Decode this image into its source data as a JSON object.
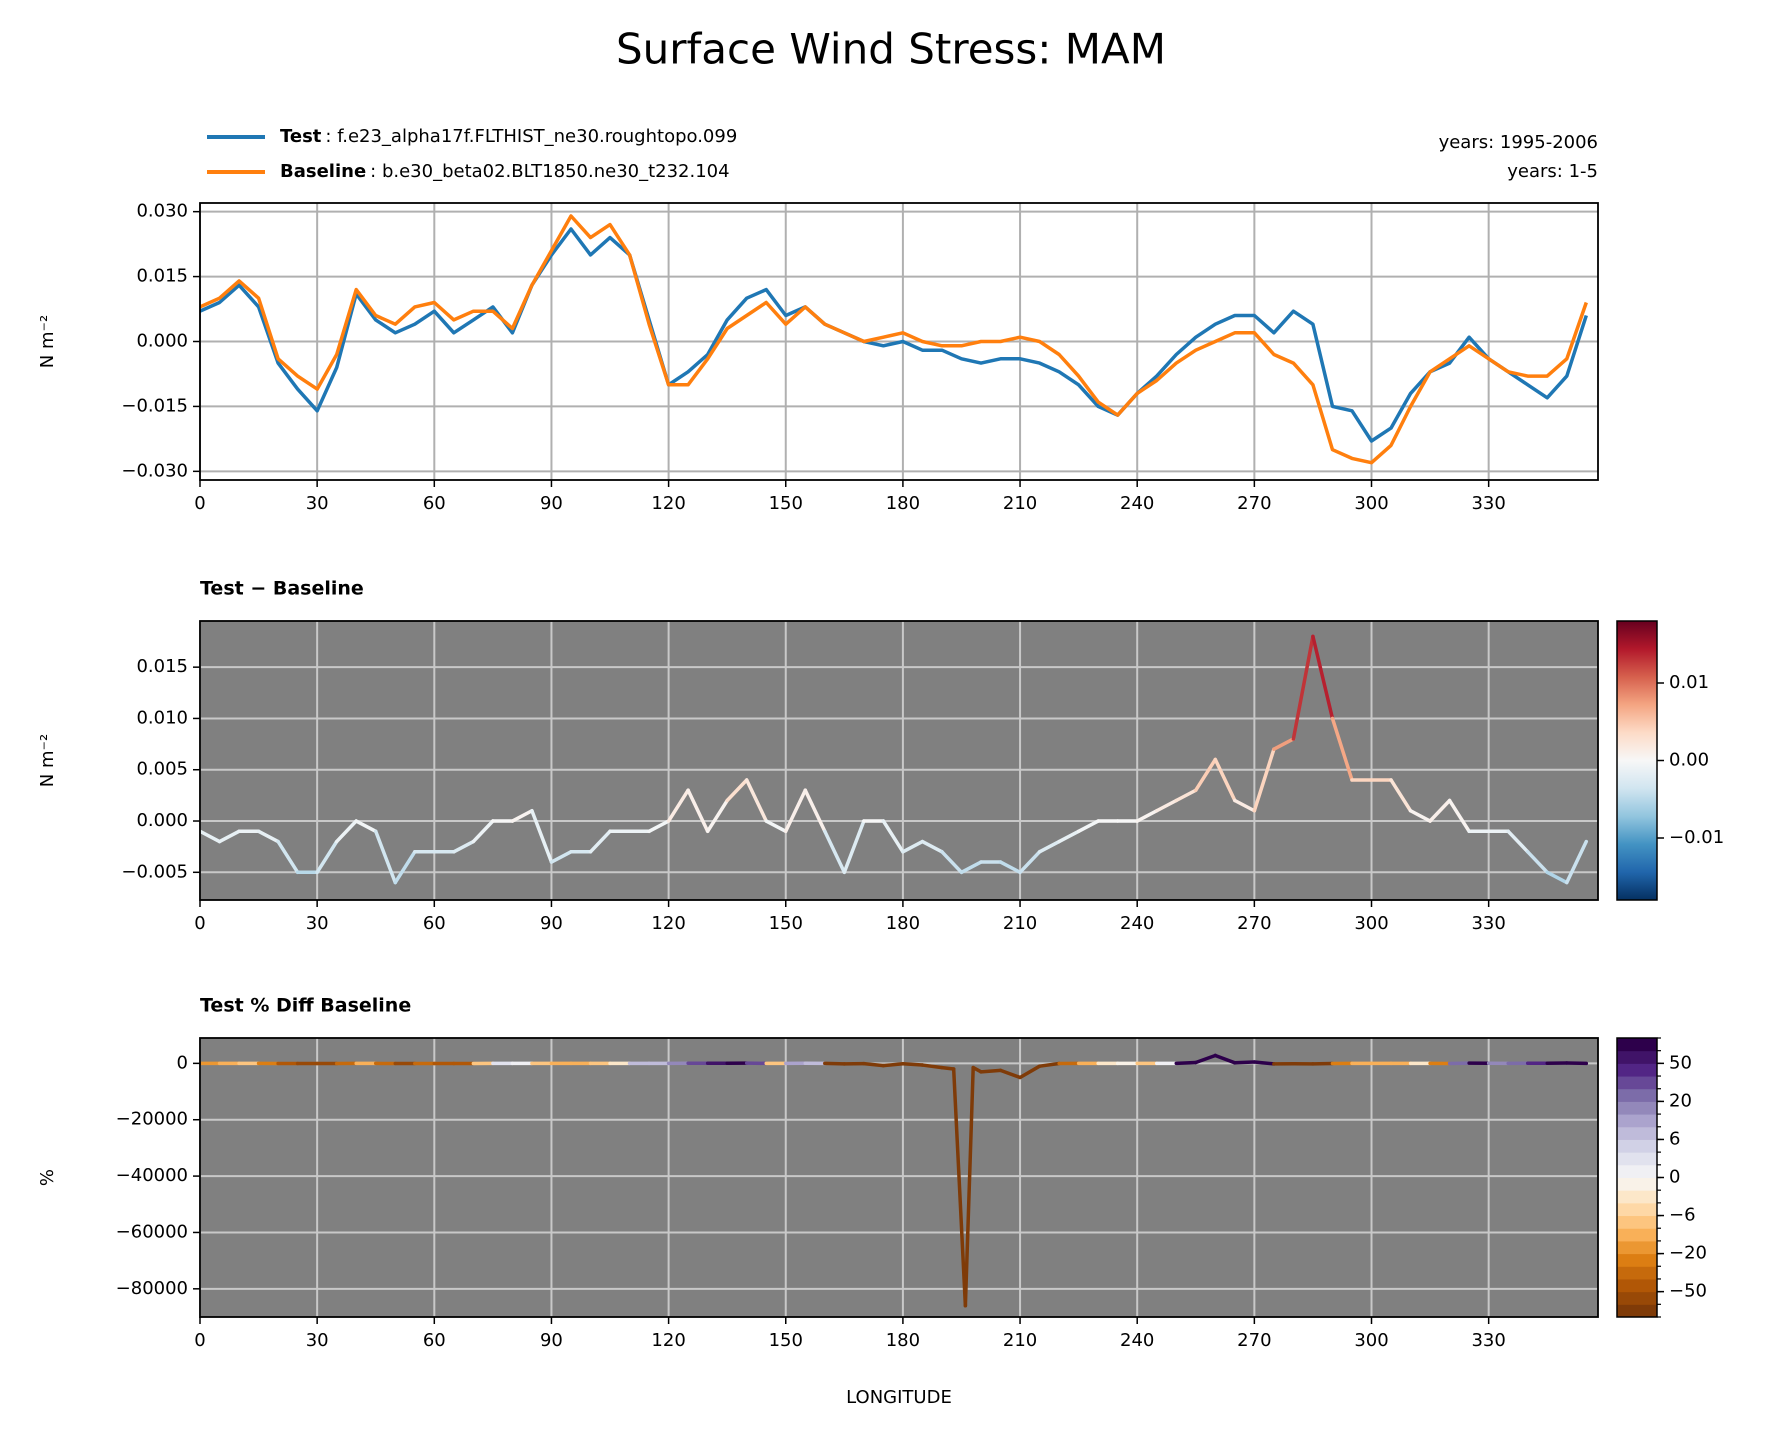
{
  "suptitle": "Surface Wind Stress: MAM",
  "xlabel": "LONGITUDE",
  "legend": {
    "notes": [
      "years: 1995-2006",
      "years: 1-5"
    ]
  },
  "chart_data": [
    {
      "type": "line",
      "ylabel": "N m⁻²",
      "facecolor": "#ffffff",
      "grid": true,
      "grid_color": "#b0b0b0",
      "x": [
        0,
        5,
        10,
        15,
        20,
        25,
        30,
        35,
        40,
        45,
        50,
        55,
        60,
        65,
        70,
        75,
        80,
        85,
        90,
        95,
        100,
        105,
        110,
        115,
        120,
        125,
        130,
        135,
        140,
        145,
        150,
        155,
        160,
        165,
        170,
        175,
        180,
        185,
        190,
        195,
        200,
        205,
        210,
        215,
        220,
        225,
        230,
        235,
        240,
        245,
        250,
        255,
        260,
        265,
        270,
        275,
        280,
        285,
        290,
        295,
        300,
        305,
        310,
        315,
        320,
        325,
        330,
        335,
        340,
        345,
        350,
        355
      ],
      "xlim": [
        0,
        358
      ],
      "xticks": [
        0,
        30,
        60,
        90,
        120,
        150,
        180,
        210,
        240,
        270,
        300,
        330
      ],
      "ylim": [
        -0.032,
        0.032
      ],
      "yticks": [
        {
          "value": -0.03,
          "label": "−0.030"
        },
        {
          "value": -0.015,
          "label": "−0.015"
        },
        {
          "value": 0,
          "label": "0.000"
        },
        {
          "value": 0.015,
          "label": "0.015"
        },
        {
          "value": 0.03,
          "label": "0.030"
        }
      ],
      "series": [
        {
          "name": "Test",
          "case": ": f.e23_alpha17f.FLTHIST_ne30.roughtopo.099",
          "color": "#1f77b4",
          "values": [
            0.007,
            0.009,
            0.013,
            0.008,
            -0.005,
            -0.011,
            -0.016,
            -0.006,
            0.011,
            0.005,
            0.002,
            0.004,
            0.007,
            0.002,
            0.005,
            0.008,
            0.002,
            0.013,
            0.02,
            0.026,
            0.02,
            0.024,
            0.02,
            0.005,
            -0.01,
            -0.007,
            -0.003,
            0.005,
            0.01,
            0.012,
            0.006,
            0.008,
            0.004,
            0.002,
            0,
            -0.001,
            0,
            -0.002,
            -0.002,
            -0.004,
            -0.005,
            -0.004,
            -0.004,
            -0.005,
            -0.007,
            -0.01,
            -0.015,
            -0.017,
            -0.012,
            -0.008,
            -0.003,
            0.001,
            0.004,
            0.006,
            0.006,
            0.002,
            0.007,
            0.004,
            -0.015,
            -0.016,
            -0.023,
            -0.02,
            -0.012,
            -0.007,
            -0.005,
            0.001,
            -0.004,
            -0.007,
            -0.01,
            -0.013,
            -0.008,
            0.006
          ]
        },
        {
          "name": "Baseline",
          "case": ": b.e30_beta02.BLT1850.ne30_t232.104",
          "color": "#ff7f0e",
          "values": [
            0.008,
            0.01,
            0.014,
            0.01,
            -0.004,
            -0.008,
            -0.011,
            -0.003,
            0.012,
            0.006,
            0.004,
            0.008,
            0.009,
            0.005,
            0.007,
            0.007,
            0.003,
            0.013,
            0.021,
            0.029,
            0.024,
            0.027,
            0.02,
            0.004,
            -0.01,
            -0.01,
            -0.004,
            0.003,
            0.006,
            0.009,
            0.004,
            0.008,
            0.004,
            0.002,
            0,
            0.001,
            0.002,
            0,
            -0.001,
            -0.001,
            0,
            0,
            0.001,
            0,
            -0.003,
            -0.008,
            -0.014,
            -0.017,
            -0.012,
            -0.009,
            -0.005,
            -0.002,
            0,
            0.002,
            0.002,
            -0.003,
            -0.005,
            -0.01,
            -0.025,
            -0.027,
            -0.028,
            -0.024,
            -0.015,
            -0.007,
            -0.004,
            -0.001,
            -0.004,
            -0.007,
            -0.008,
            -0.008,
            -0.004,
            0.009
          ]
        }
      ]
    },
    {
      "type": "colored_line",
      "title": "Test − Baseline",
      "ylabel": "N m⁻²",
      "facecolor": "#808080",
      "grid": true,
      "grid_color": "#c8c8c8",
      "x": [
        0,
        5,
        10,
        15,
        20,
        25,
        30,
        35,
        40,
        45,
        50,
        55,
        60,
        65,
        70,
        75,
        80,
        85,
        90,
        95,
        100,
        105,
        110,
        115,
        120,
        125,
        130,
        135,
        140,
        145,
        150,
        155,
        160,
        165,
        170,
        175,
        180,
        185,
        190,
        195,
        200,
        205,
        210,
        215,
        220,
        225,
        230,
        235,
        240,
        245,
        250,
        255,
        260,
        265,
        270,
        275,
        280,
        285,
        290,
        295,
        300,
        305,
        310,
        315,
        320,
        325,
        330,
        335,
        340,
        345,
        350,
        355
      ],
      "values": [
        -0.001,
        -0.002,
        -0.001,
        -0.001,
        -0.002,
        -0.005,
        -0.005,
        -0.002,
        0,
        -0.001,
        -0.006,
        -0.003,
        -0.003,
        -0.003,
        -0.002,
        0,
        0,
        0.001,
        -0.004,
        -0.003,
        -0.003,
        -0.001,
        -0.001,
        -0.001,
        0,
        0.003,
        -0.001,
        0.002,
        0.004,
        0,
        -0.001,
        0.003,
        -0.001,
        -0.005,
        0,
        0,
        -0.003,
        -0.002,
        -0.003,
        -0.005,
        -0.004,
        -0.004,
        -0.005,
        -0.003,
        -0.002,
        -0.001,
        0,
        0,
        0,
        0.001,
        0.002,
        0.003,
        0.006,
        0.002,
        0.001,
        0.007,
        0.008,
        0.018,
        0.01,
        0.004,
        0.004,
        0.004,
        0.001,
        0,
        0.002,
        -0.001,
        -0.001,
        -0.001,
        -0.003,
        -0.005,
        -0.006,
        -0.002
      ],
      "xlim": [
        0,
        358
      ],
      "xticks": [
        0,
        30,
        60,
        90,
        120,
        150,
        180,
        210,
        240,
        270,
        300,
        330
      ],
      "ylim": [
        -0.0077,
        0.0195
      ],
      "yticks": [
        {
          "value": -0.005,
          "label": "−0.005"
        },
        {
          "value": 0,
          "label": "0.000"
        },
        {
          "value": 0.005,
          "label": "0.005"
        },
        {
          "value": 0.01,
          "label": "0.010"
        },
        {
          "value": 0.015,
          "label": "0.015"
        }
      ],
      "colormap": [
        "#053061",
        "#2166ac",
        "#4393c3",
        "#92c5de",
        "#d1e5f0",
        "#f7f7f7",
        "#fddbc7",
        "#f4a582",
        "#d6604d",
        "#b2182b",
        "#67001f"
      ],
      "clim": [
        -0.018,
        0.018
      ],
      "cticks": [
        {
          "value": -0.01,
          "label": "−0.01"
        },
        {
          "value": 0,
          "label": "0.00"
        },
        {
          "value": 0.01,
          "label": "0.01"
        }
      ]
    },
    {
      "type": "colored_line",
      "title": "Test % Diff Baseline",
      "ylabel": "%",
      "facecolor": "#808080",
      "grid": true,
      "grid_color": "#c8c8c8",
      "x": [
        0,
        5,
        10,
        15,
        20,
        25,
        30,
        35,
        40,
        45,
        50,
        55,
        60,
        65,
        70,
        75,
        80,
        85,
        90,
        95,
        100,
        105,
        110,
        115,
        120,
        125,
        130,
        135,
        140,
        145,
        150,
        155,
        160,
        165,
        170,
        175,
        180,
        185,
        190,
        193,
        196,
        198,
        200,
        205,
        210,
        215,
        220,
        225,
        230,
        235,
        240,
        245,
        250,
        255,
        260,
        265,
        270,
        275,
        280,
        285,
        290,
        295,
        300,
        305,
        310,
        315,
        320,
        325,
        330,
        335,
        340,
        345,
        350,
        355
      ],
      "values": [
        -15,
        -20,
        -8,
        -10,
        -40,
        -60,
        -45,
        -70,
        -8,
        -15,
        -60,
        -45,
        -30,
        -55,
        -30,
        12,
        -5,
        5,
        -20,
        -10,
        -15,
        -5,
        -3,
        15,
        2,
        30,
        40,
        60,
        70,
        5,
        -20,
        40,
        -25,
        -200,
        -100,
        -800,
        -150,
        -600,
        -1500,
        -2000,
        -86000,
        -1500,
        -3000,
        -2500,
        -5000,
        -1000,
        -60,
        -20,
        -5,
        0,
        -3,
        -10,
        10,
        300,
        2800,
        200,
        500,
        -200,
        -150,
        -180,
        -40,
        -15,
        -14,
        -16,
        -8,
        0,
        -50,
        100,
        25,
        14,
        37,
        62,
        150,
        -20
      ],
      "xlim": [
        0,
        358
      ],
      "xticks": [
        0,
        30,
        60,
        90,
        120,
        150,
        180,
        210,
        240,
        270,
        300,
        330
      ],
      "ylim": [
        -90000,
        9000
      ],
      "yticks": [
        {
          "value": -80000,
          "label": "−80000"
        },
        {
          "value": -60000,
          "label": "−60000"
        },
        {
          "value": -40000,
          "label": "−40000"
        },
        {
          "value": -20000,
          "label": "−20000"
        },
        0
      ],
      "colormap": [
        "#7f3b08",
        "#b35806",
        "#e08214",
        "#fdb863",
        "#fee0b6",
        "#f7f7f7",
        "#d8daeb",
        "#b2abd2",
        "#8073ac",
        "#542788",
        "#2d004b"
      ],
      "levels": [
        -80,
        -60,
        -50,
        -40,
        -30,
        -20,
        -15,
        -10,
        -6,
        -4,
        -2,
        0,
        2,
        4,
        6,
        10,
        15,
        20,
        30,
        40,
        50,
        60,
        80
      ],
      "cticks": [
        {
          "value": -50,
          "label": "−50"
        },
        {
          "value": -20,
          "label": "−20"
        },
        {
          "value": -6,
          "label": "−6"
        },
        0,
        6,
        20,
        50
      ]
    }
  ]
}
